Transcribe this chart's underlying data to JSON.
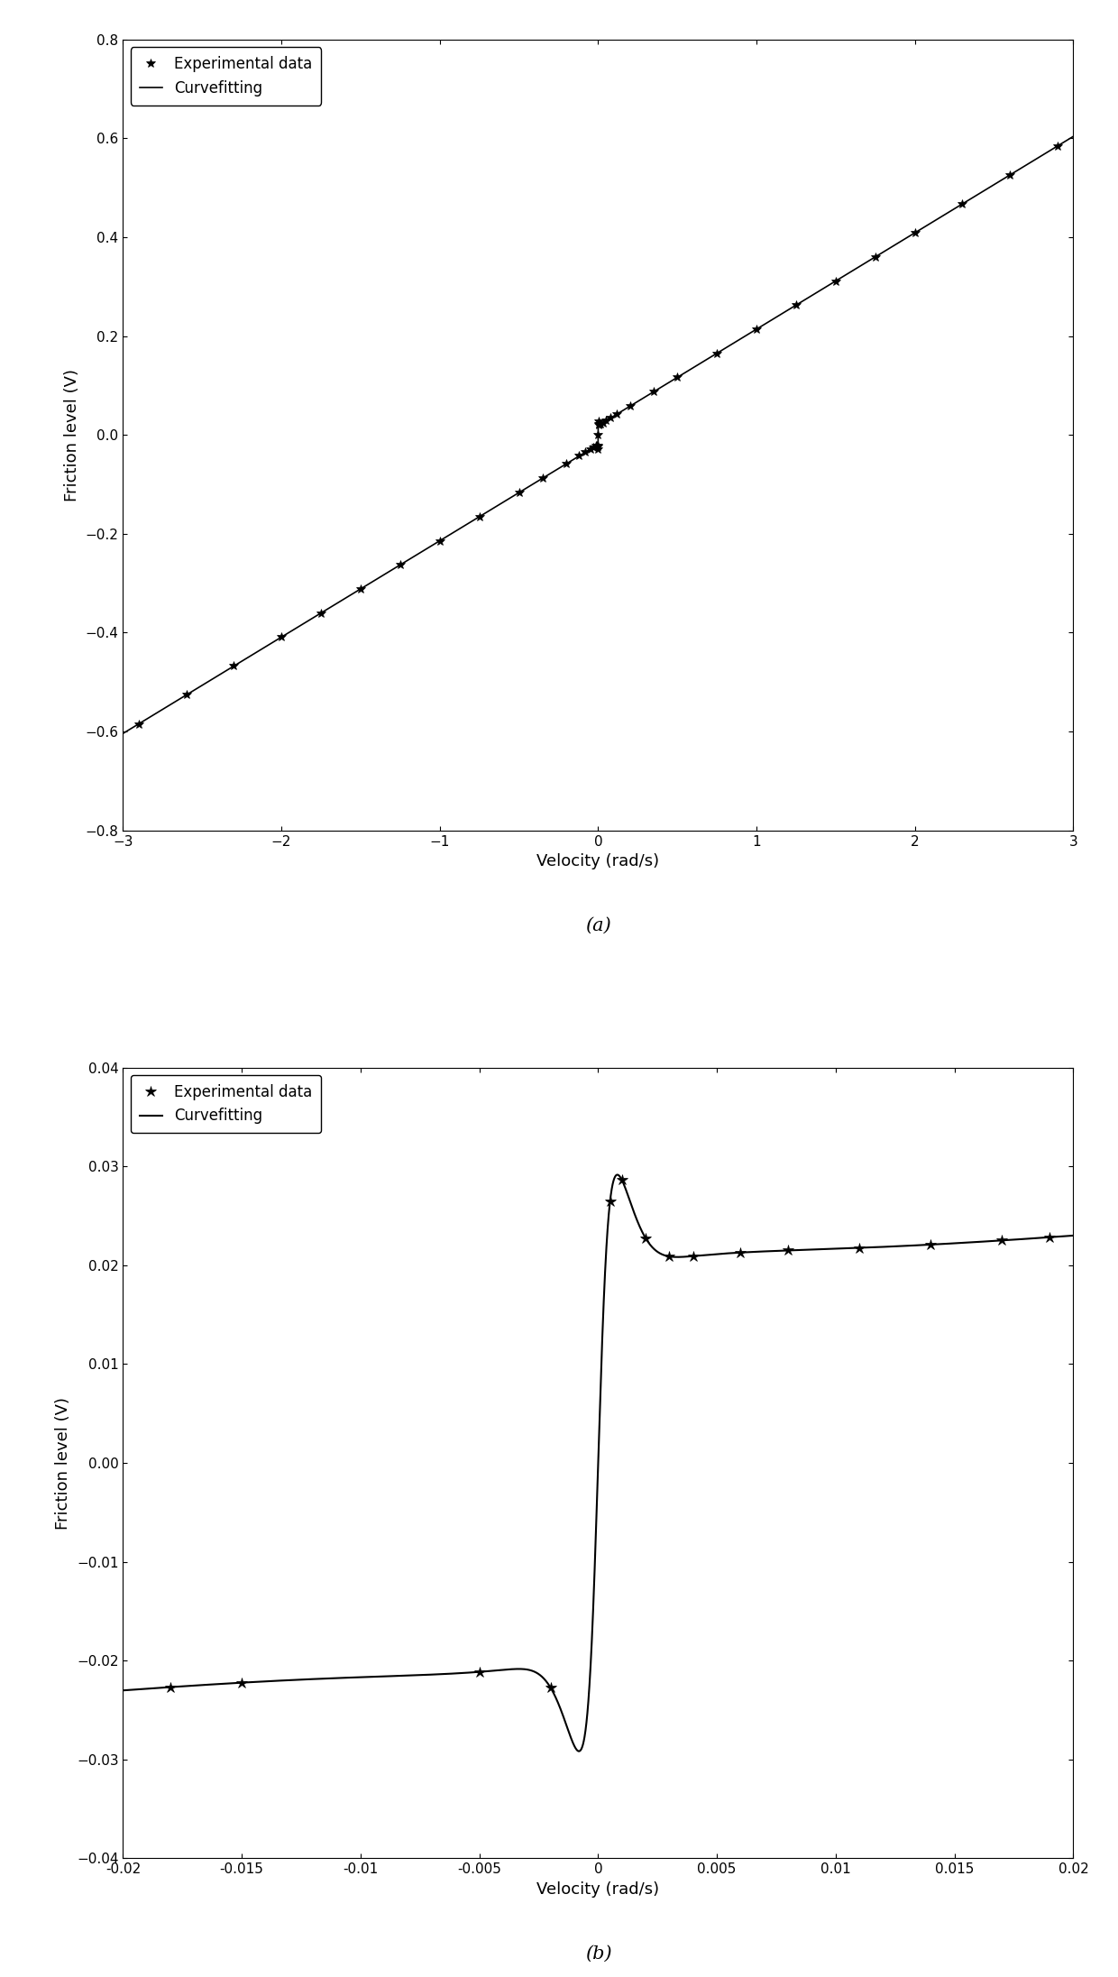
{
  "plot_a": {
    "xlim": [
      -3,
      3
    ],
    "ylim": [
      -0.8,
      0.8
    ],
    "xlabel": "Velocity (rad/s)",
    "ylabel": "Friction level (V)",
    "xticks": [
      -3,
      -2,
      -1,
      0,
      1,
      2,
      3
    ],
    "yticks": [
      -0.8,
      -0.6,
      -0.4,
      -0.2,
      0,
      0.2,
      0.4,
      0.6,
      0.8
    ],
    "label": "(a)",
    "exp_v": [
      -2.9,
      -2.6,
      -2.3,
      -2.0,
      -1.75,
      -1.5,
      -1.25,
      -1.0,
      -0.75,
      -0.5,
      -0.35,
      -0.2,
      -0.12,
      -0.08,
      -0.05,
      -0.03,
      -0.015,
      -0.008,
      -0.004,
      -0.002,
      -0.001,
      0.0,
      0.001,
      0.002,
      0.004,
      0.008,
      0.015,
      0.03,
      0.05,
      0.08,
      0.12,
      0.2,
      0.35,
      0.5,
      0.75,
      1.0,
      1.25,
      1.5,
      1.75,
      2.0,
      2.3,
      2.6,
      2.9
    ]
  },
  "plot_b": {
    "xlim": [
      -0.02,
      0.02
    ],
    "ylim": [
      -0.04,
      0.04
    ],
    "xlabel": "Velocity (rad/s)",
    "ylabel": "Friction level (V)",
    "xticks": [
      -0.02,
      -0.015,
      -0.01,
      -0.005,
      0,
      0.005,
      0.01,
      0.015,
      0.02
    ],
    "yticks": [
      -0.04,
      -0.03,
      -0.02,
      -0.01,
      0,
      0.01,
      0.02,
      0.03,
      0.04
    ],
    "label": "(b)",
    "exp_v": [
      -0.018,
      -0.015,
      -0.005,
      -0.002,
      0.0005,
      0.001,
      0.002,
      0.003,
      0.004,
      0.006,
      0.008,
      0.011,
      0.014,
      0.017,
      0.019
    ]
  },
  "friction_params": {
    "Fc": 0.019,
    "Fs": 0.034,
    "vs": 0.0015,
    "b_low": 0.75,
    "b_high": 0.195
  },
  "legend_star_label": "Experimental data",
  "legend_line_label": "Curvefitting",
  "line_color": "#000000",
  "star_color": "#000000",
  "background_color": "#ffffff",
  "fig_width": 12.4,
  "fig_height": 21.92,
  "dpi": 100
}
